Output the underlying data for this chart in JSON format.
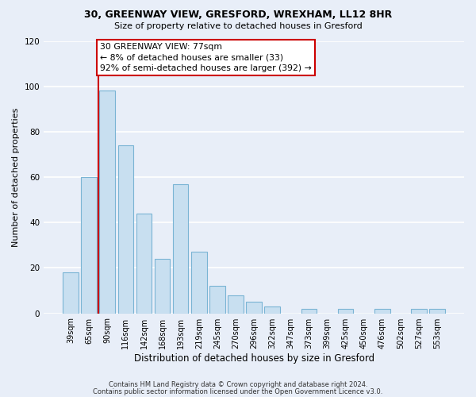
{
  "title1": "30, GREENWAY VIEW, GRESFORD, WREXHAM, LL12 8HR",
  "title2": "Size of property relative to detached houses in Gresford",
  "xlabel": "Distribution of detached houses by size in Gresford",
  "ylabel": "Number of detached properties",
  "bar_labels": [
    "39sqm",
    "65sqm",
    "90sqm",
    "116sqm",
    "142sqm",
    "168sqm",
    "193sqm",
    "219sqm",
    "245sqm",
    "270sqm",
    "296sqm",
    "322sqm",
    "347sqm",
    "373sqm",
    "399sqm",
    "425sqm",
    "450sqm",
    "476sqm",
    "502sqm",
    "527sqm",
    "553sqm"
  ],
  "bar_heights": [
    18,
    60,
    98,
    74,
    44,
    24,
    57,
    27,
    12,
    8,
    5,
    3,
    0,
    2,
    0,
    2,
    0,
    2,
    0,
    2,
    2
  ],
  "bar_color": "#c8dff0",
  "bar_edge_color": "#7ab4d4",
  "vline_color": "#cc0000",
  "vline_x": 1.5,
  "annotation_text": "30 GREENWAY VIEW: 77sqm\n← 8% of detached houses are smaller (33)\n92% of semi-detached houses are larger (392) →",
  "annotation_box_color": "#ffffff",
  "annotation_box_edge": "#cc0000",
  "ylim": [
    0,
    120
  ],
  "yticks": [
    0,
    20,
    40,
    60,
    80,
    100,
    120
  ],
  "footer1": "Contains HM Land Registry data © Crown copyright and database right 2024.",
  "footer2": "Contains public sector information licensed under the Open Government Licence v3.0.",
  "background_color": "#e8eef8"
}
